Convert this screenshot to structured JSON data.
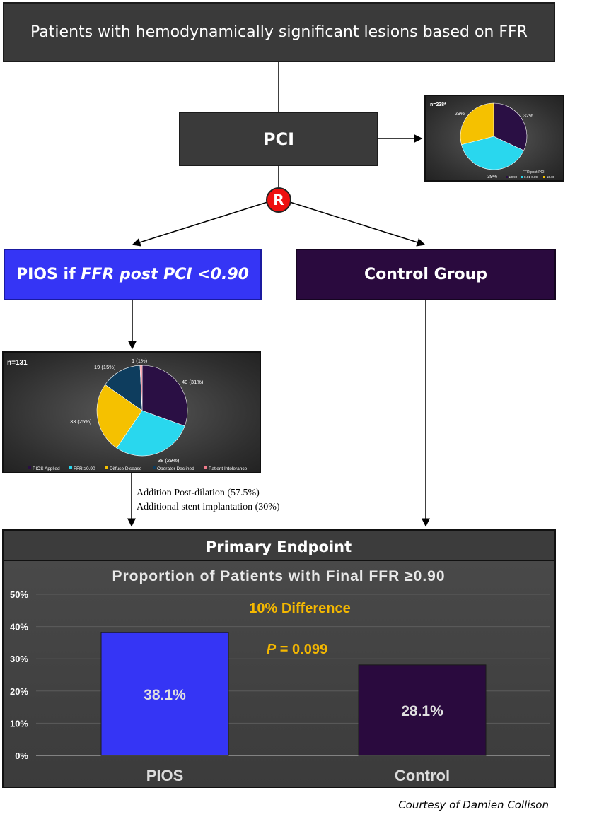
{
  "flow": {
    "top_box": "Patients with hemodynamically significant lesions based on FFR",
    "pci_box": "PCI",
    "randomize_label": "R",
    "pios_box": {
      "plain": "PIOS if ",
      "italic": "FFR post PCI <0.90"
    },
    "control_box": "Control Group",
    "annotations": [
      "Addition Post-dilation (57.5%)",
      "Additional stent implantation (30%)"
    ],
    "courtesy": "Courtesy of Damien Collison"
  },
  "colors": {
    "pios_blue": "#3535f5",
    "control_purple": "#2a0a3e",
    "r_red": "#ee1111",
    "highlight_yellow": "#f5b800"
  },
  "chart_data": [
    {
      "type": "pie",
      "n_label": "n=238*",
      "legend_title": "FFR post-PCI",
      "slices": [
        {
          "name": "≥0.90",
          "value": 32,
          "label": "32%",
          "color": "#2a0f44"
        },
        {
          "name": "0.81-0.89",
          "value": 39,
          "label": "39%",
          "color": "#29d7ee"
        },
        {
          "name": "≤0.80",
          "value": 29,
          "label": "29%",
          "color": "#f5c100"
        }
      ]
    },
    {
      "type": "pie",
      "n_label": "n=131",
      "slices": [
        {
          "name": "PIOS Applied",
          "value": 40,
          "label": "40 (31%)",
          "color": "#2a0f44"
        },
        {
          "name": "FFR ≥0.90",
          "value": 38,
          "label": "38 (29%)",
          "color": "#29d7ee"
        },
        {
          "name": "Diffuse Disease",
          "value": 33,
          "label": "33 (25%)",
          "color": "#f5c100"
        },
        {
          "name": "Operator Declined",
          "value": 19,
          "label": "19 (15%)",
          "color": "#0e3d5e"
        },
        {
          "name": "Patient Intolerance",
          "value": 1,
          "label": "1 (1%)",
          "color": "#f07b8a"
        }
      ]
    },
    {
      "type": "bar",
      "header": "Primary Endpoint",
      "title": "Proportion of Patients with Final FFR ≥0.90",
      "categories": [
        "PIOS",
        "Control"
      ],
      "values": [
        38.1,
        28.1
      ],
      "value_labels": [
        "38.1%",
        "28.1%"
      ],
      "colors": [
        "#3535f5",
        "#2a0a3e"
      ],
      "ylim": [
        0,
        50
      ],
      "yticks": [
        "0%",
        "10%",
        "20%",
        "30%",
        "40%",
        "50%"
      ],
      "annotations": {
        "difference": "10% Difference",
        "p_symbol": "P",
        "p_rest": " = 0.099"
      }
    }
  ]
}
